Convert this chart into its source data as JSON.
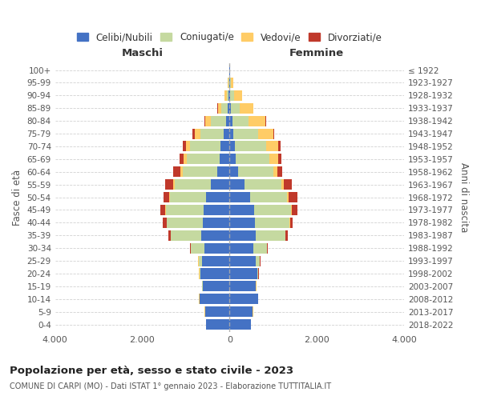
{
  "age_groups": [
    "0-4",
    "5-9",
    "10-14",
    "15-19",
    "20-24",
    "25-29",
    "30-34",
    "35-39",
    "40-44",
    "45-49",
    "50-54",
    "55-59",
    "60-64",
    "65-69",
    "70-74",
    "75-79",
    "80-84",
    "85-89",
    "90-94",
    "95-99",
    "100+"
  ],
  "birth_years": [
    "2018-2022",
    "2013-2017",
    "2008-2012",
    "2003-2007",
    "1998-2002",
    "1993-1997",
    "1988-1992",
    "1983-1987",
    "1978-1982",
    "1973-1977",
    "1968-1972",
    "1963-1967",
    "1958-1962",
    "1953-1957",
    "1948-1952",
    "1943-1947",
    "1938-1942",
    "1933-1937",
    "1928-1932",
    "1923-1927",
    "≤ 1922"
  ],
  "colors": {
    "celibe": "#4472C4",
    "coniugato": "#C5D9A0",
    "vedovo": "#FFCC66",
    "divorziato": "#C0392B"
  },
  "maschi": {
    "celibe": [
      530,
      560,
      680,
      620,
      660,
      630,
      580,
      640,
      620,
      600,
      530,
      430,
      280,
      230,
      200,
      130,
      80,
      40,
      20,
      10,
      5
    ],
    "coniugato": [
      5,
      5,
      10,
      10,
      30,
      80,
      300,
      700,
      820,
      860,
      840,
      830,
      800,
      750,
      700,
      540,
      350,
      150,
      40,
      15,
      5
    ],
    "vedovo": [
      2,
      3,
      5,
      5,
      5,
      5,
      5,
      5,
      5,
      10,
      20,
      30,
      50,
      70,
      100,
      130,
      120,
      80,
      50,
      15,
      2
    ],
    "divorziato": [
      0,
      0,
      2,
      3,
      5,
      10,
      25,
      50,
      80,
      120,
      130,
      190,
      160,
      100,
      80,
      50,
      30,
      10,
      5,
      0,
      0
    ]
  },
  "femmine": {
    "celibe": [
      490,
      530,
      650,
      600,
      630,
      610,
      550,
      600,
      580,
      560,
      470,
      350,
      190,
      150,
      120,
      80,
      60,
      40,
      20,
      10,
      5
    ],
    "coniugato": [
      5,
      5,
      10,
      10,
      30,
      80,
      300,
      680,
      800,
      850,
      840,
      830,
      810,
      760,
      720,
      580,
      380,
      200,
      80,
      20,
      3
    ],
    "vedovo": [
      1,
      2,
      2,
      3,
      3,
      5,
      5,
      8,
      10,
      20,
      40,
      60,
      100,
      200,
      280,
      340,
      380,
      300,
      180,
      60,
      10
    ],
    "divorziato": [
      0,
      0,
      0,
      2,
      3,
      8,
      20,
      40,
      60,
      120,
      200,
      180,
      110,
      70,
      50,
      30,
      20,
      10,
      5,
      0,
      0
    ]
  },
  "title": "Popolazione per età, sesso e stato civile - 2023",
  "subtitle": "COMUNE DI CARPI (MO) - Dati ISTAT 1° gennaio 2023 - Elaborazione TUTTITALIA.IT",
  "xlabel_left": "Maschi",
  "xlabel_right": "Femmine",
  "ylabel_left": "Fasce di età",
  "ylabel_right": "Anni di nascita",
  "xlim": 4000,
  "bg_color": "#ffffff",
  "grid_color": "#cccccc"
}
